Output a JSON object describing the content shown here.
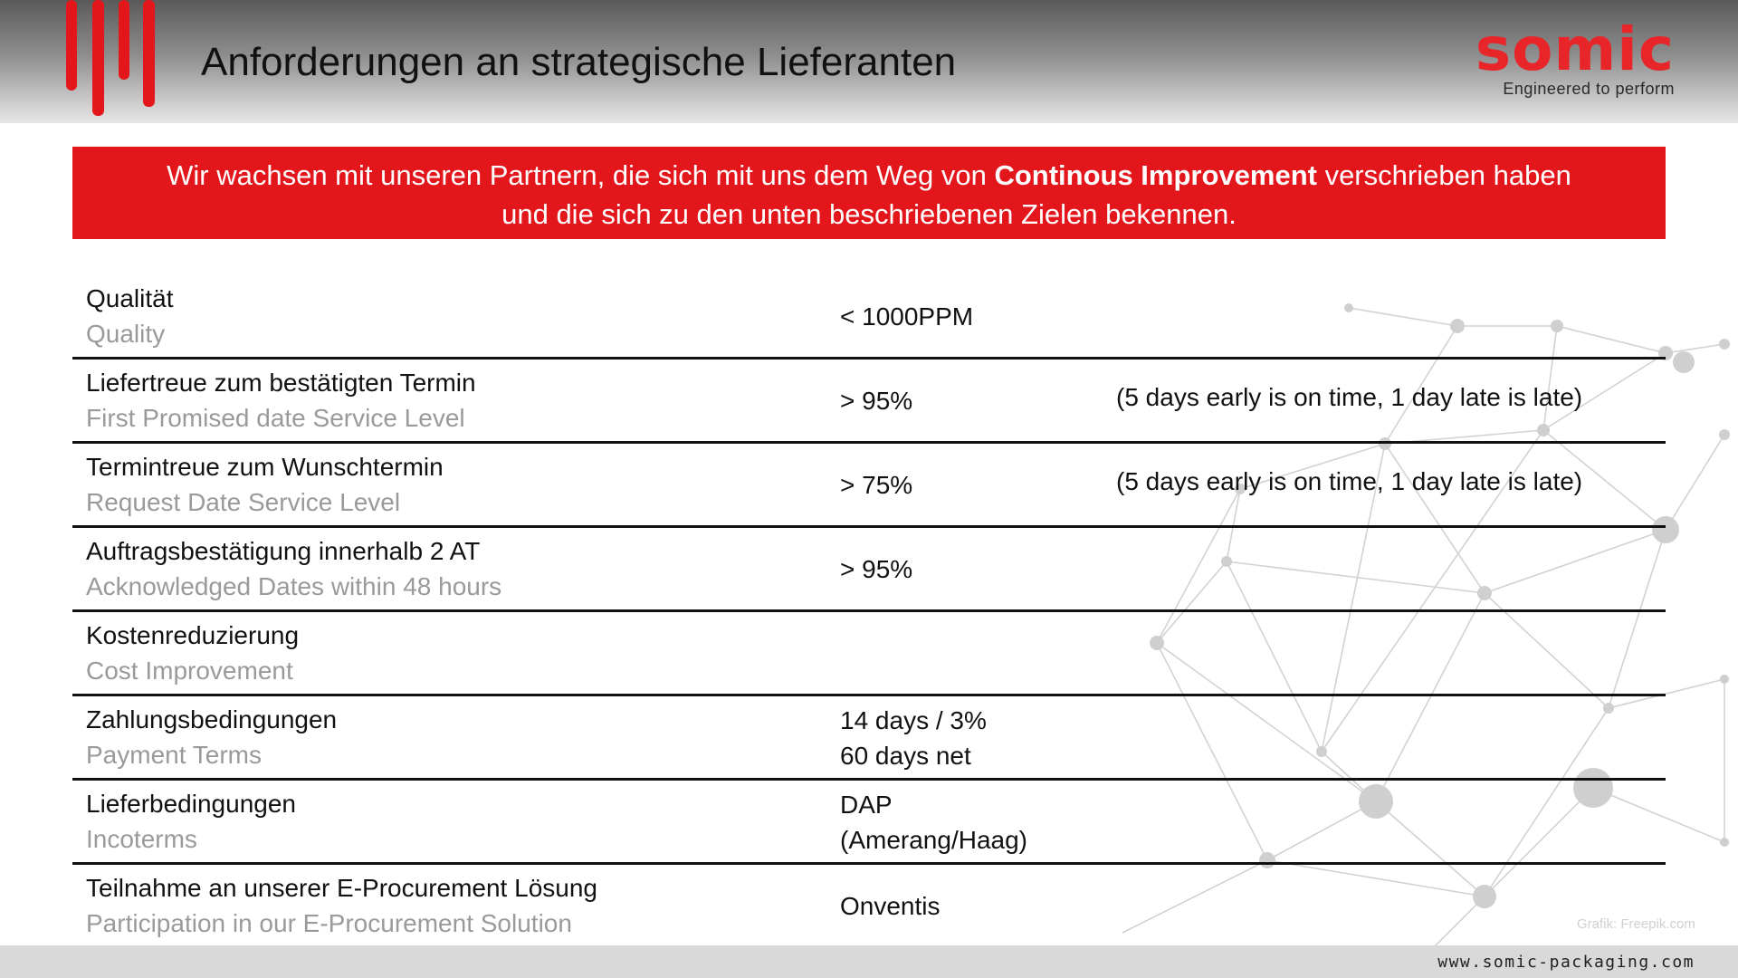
{
  "header": {
    "title": "Anforderungen an strategische Lieferanten",
    "logo_word": "somic",
    "logo_tagline": "Engineered to perform",
    "accent_color": "#e3161b"
  },
  "banner": {
    "pre": "Wir wachsen mit unseren Partnern, die sich mit uns dem Weg von ",
    "bold": "Continous Improvement",
    "post": " verschrieben haben",
    "line2": "und die sich zu den unten beschriebenen Zielen bekennen."
  },
  "requirements": [
    {
      "de": "Qualität",
      "en": "Quality",
      "value": "< 1000PPM",
      "value2": "",
      "note": ""
    },
    {
      "de": "Liefertreue zum bestätigten Termin",
      "en": "First Promised date Service Level",
      "value": "> 95%",
      "value2": "",
      "note": "(5 days early is on time, 1 day late is late)"
    },
    {
      "de": "Termintreue zum Wunschtermin",
      "en": "Request Date Service Level",
      "value": "> 75%",
      "value2": "",
      "note": "(5 days early is on time, 1 day late is late)"
    },
    {
      "de": "Auftragsbestätigung innerhalb 2 AT",
      "en": "Acknowledged Dates within 48 hours",
      "value": "> 95%",
      "value2": "",
      "note": ""
    },
    {
      "de": "Kostenreduzierung",
      "en": "Cost Improvement",
      "value": "",
      "value2": "",
      "note": ""
    },
    {
      "de": "Zahlungsbedingungen",
      "en": "Payment Terms",
      "value": "14 days / 3%",
      "value2": "60 days net",
      "note": ""
    },
    {
      "de": "Lieferbedingungen",
      "en": "Incoterms",
      "value": "DAP",
      "value2": "(Amerang/Haag)",
      "note": ""
    },
    {
      "de": "Teilnahme an unserer E-Procurement Lösung",
      "en": "Participation in our E-Procurement Solution",
      "value": "Onventis",
      "value2": "",
      "note": ""
    }
  ],
  "credit": "Grafik: Freepik.com",
  "footer": {
    "url": "www.somic-packaging.com"
  }
}
